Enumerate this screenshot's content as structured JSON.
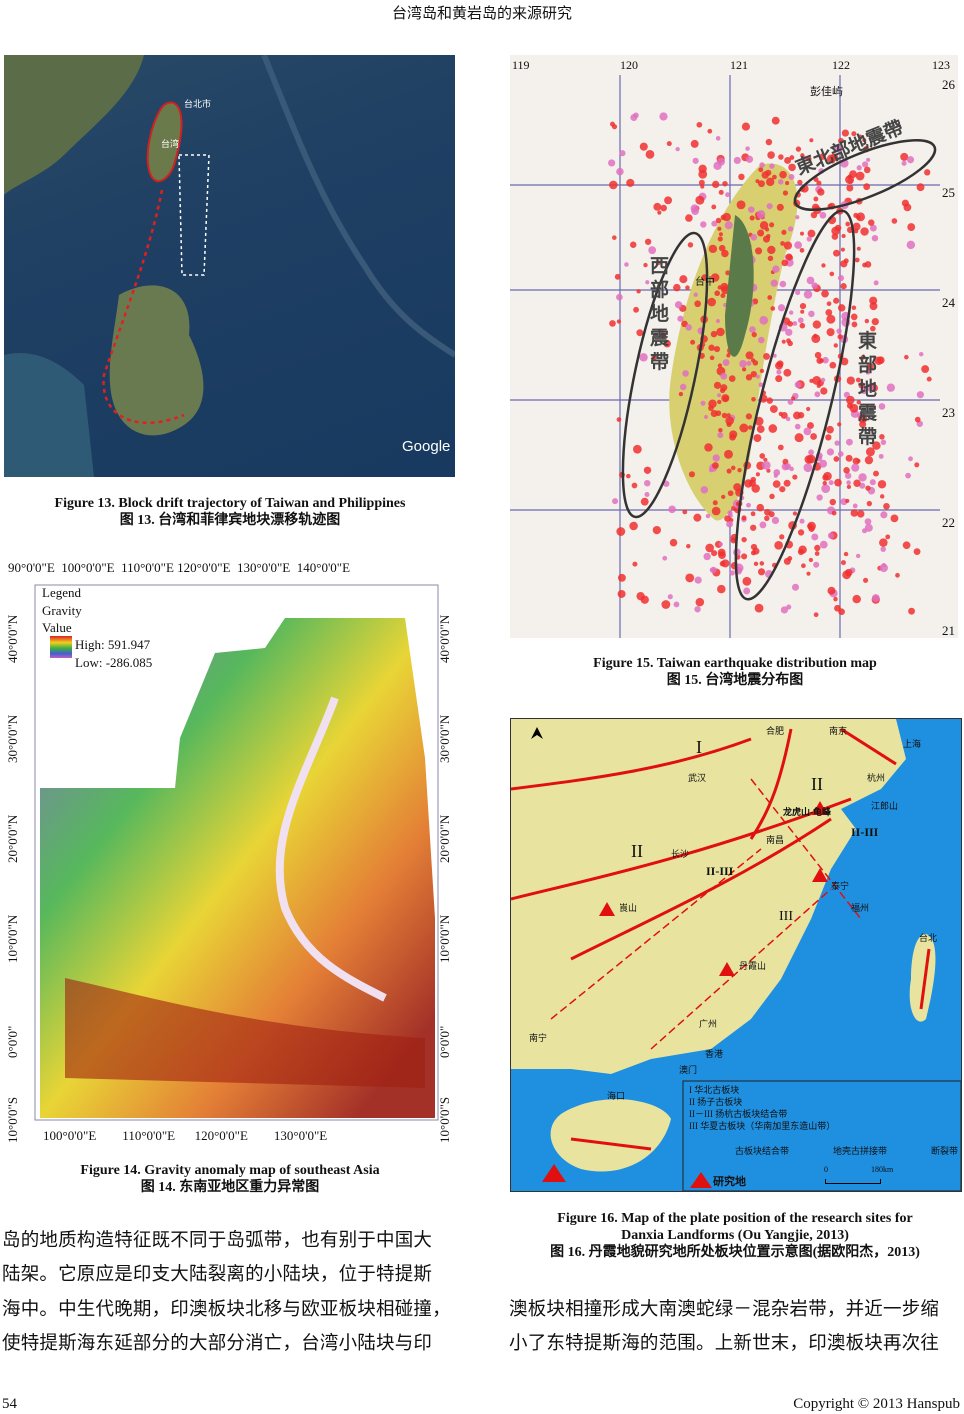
{
  "header": {
    "title": "台湾岛和黄岩岛的来源研究"
  },
  "fig13": {
    "caption_en": "Figure 13. Block drift trajectory of Taiwan and Philippines",
    "caption_zh": "图 13.  台湾和菲律宾地块漂移轨迹图",
    "labels": {
      "taipei": "台北市",
      "taiwan": "台湾",
      "logo": "Google"
    }
  },
  "fig14": {
    "caption_en": "Figure 14. Gravity anomaly map of southeast Asia",
    "caption_zh": "图 14.  东南亚地区重力异常图",
    "top_ticks": [
      "90°0'0\"E",
      "100°0'0\"E",
      "110°0'0\"E",
      "120°0'0\"E",
      "130°0'0\"E",
      "140°0'0\"E"
    ],
    "bottom_ticks": [
      "100°0'0\"E",
      "110°0'0\"E",
      "120°0'0\"E",
      "130°0'0\"E"
    ],
    "left_ticks": [
      "40°0'0\"N",
      "30°0'0\"N",
      "20°0'0\"N",
      "10°0'0\"N",
      "0°0'0\"",
      "10°0'0\"S"
    ],
    "right_ticks": [
      "40°0'0\"N",
      "30°0'0\"N",
      "20°0'0\"N",
      "10°0'0\"N",
      "0°0'0\"",
      "10°0'0\"S"
    ],
    "legend": {
      "title1": "Legend",
      "title2": "Gravity",
      "title3": "Value",
      "high": "High: 591.947",
      "low": "Low: -286.085"
    }
  },
  "fig15": {
    "caption_en": "Figure 15. Taiwan earthquake distribution map",
    "caption_zh": "图 15.  台湾地震分布图",
    "top_ticks": [
      "119",
      "120",
      "121",
      "122",
      "123"
    ],
    "right_ticks": [
      "26",
      "25",
      "24",
      "23",
      "22",
      "21"
    ],
    "labels": {
      "ne": "東北部地震帶",
      "west": "西部地震帶",
      "east": "東部地震帶",
      "pengjia": "彭佳屿",
      "taichung": "台中"
    }
  },
  "fig16": {
    "caption_en_1": "Figure 16. Map of the plate position of the research sites for",
    "caption_en_2": "Danxia Landforms (Ou Yangjie, 2013)",
    "caption_zh": "图 16.  丹霞地貌研究地所处板块位置示意图(据欧阳杰，2013)",
    "places": {
      "hefei": "合肥",
      "nanjing": "南京",
      "shanghai": "上海",
      "wuhan": "武汉",
      "hangzhou": "杭州",
      "jianglang": "江郎山",
      "longhu": "龙虎山-龟峰",
      "nanchang": "南昌",
      "changsha": "长沙",
      "taining": "泰宁",
      "fuzhou": "福州",
      "langshan": "崀山",
      "danxia": "丹霞山",
      "taibei": "台北",
      "guangzhou": "广州",
      "nanning": "南宁",
      "hongkong": "香港",
      "macau": "澳门",
      "haikou": "海口"
    },
    "zones": {
      "I": "I",
      "II_n": "II",
      "II_w": "II",
      "II_III": "II-III",
      "II_III_b": "II-III",
      "III": "III"
    },
    "legend": {
      "l1": "I  华北古板块",
      "l2": "II  扬子古板块",
      "l3": "II－III  扬杭古板块结合带",
      "l4": "III  华夏古板块（华南加里东造山带）",
      "suture": "古板块结合带",
      "crust": "地壳古拼接带",
      "fault": "断裂带",
      "site": "研究地",
      "scale0": "0",
      "scale1": "180km"
    },
    "colors": {
      "sea": "#1f8fe0",
      "land": "#e8e4a0",
      "line": "#e01010"
    }
  },
  "text_left": [
    "岛的地质构造特征既不同于岛弧带，也有别于中国大",
    "陆架。它原应是印支大陆裂离的小陆块，位于特提斯",
    "海中。中生代晚期，印澳板块北移与欧亚板块相碰撞，",
    "使特提斯海东延部分的大部分消亡，台湾小陆块与印"
  ],
  "text_right": [
    "澳板块相撞形成大南澳蛇绿－混杂岩带，并近一步缩",
    "小了东特提斯海的范围。上新世末，印澳板块再次往"
  ],
  "footer": {
    "page": "54",
    "copyright": "Copyright © 2013 Hanspub"
  }
}
